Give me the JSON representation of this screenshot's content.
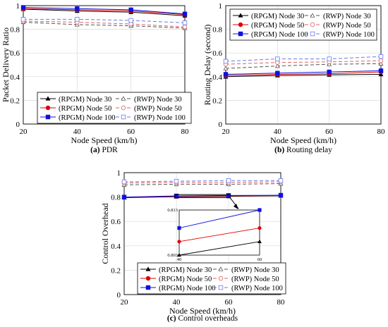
{
  "figure": {
    "captions": [
      {
        "label": "(a)",
        "text": "PDR"
      },
      {
        "label": "(b)",
        "text": "Routing delay"
      },
      {
        "label": "(c)",
        "text": "Control overheads"
      }
    ]
  },
  "chart_data": [
    {
      "type": "line",
      "id": "a",
      "xlabel": "Node Speed (km/h)",
      "ylabel": "Packet Delivery Ratio",
      "xlim": [
        20,
        80
      ],
      "ylim": [
        0,
        1
      ],
      "xticks": [
        20,
        40,
        60,
        80
      ],
      "yticks": [
        0,
        0.2,
        0.4,
        0.6,
        0.8,
        1
      ],
      "grid": true,
      "legend": "bottom",
      "x": [
        20,
        40,
        60,
        80
      ],
      "series": [
        {
          "name": "(RPGM) Node 30",
          "values": [
            0.97,
            0.955,
            0.945,
            0.915
          ]
        },
        {
          "name": "(RWP) Node 30",
          "values": [
            0.86,
            0.84,
            0.83,
            0.81
          ]
        },
        {
          "name": "(RPGM) Node 50",
          "values": [
            0.975,
            0.965,
            0.955,
            0.925
          ]
        },
        {
          "name": "(RWP) Node 50",
          "values": [
            0.87,
            0.86,
            0.845,
            0.82
          ]
        },
        {
          "name": "(RPGM) Node 100",
          "values": [
            0.985,
            0.975,
            0.965,
            0.93
          ]
        },
        {
          "name": "(RWP) Node 100",
          "values": [
            0.885,
            0.885,
            0.875,
            0.855
          ]
        }
      ]
    },
    {
      "type": "line",
      "id": "b",
      "xlabel": "Node Speed (km/h)",
      "ylabel": "Routing Delay (second)",
      "xlim": [
        20,
        80
      ],
      "ylim": [
        0,
        1
      ],
      "xticks": [
        20,
        40,
        60,
        80
      ],
      "yticks": [
        0,
        0.2,
        0.4,
        0.6,
        0.8,
        1
      ],
      "grid": true,
      "legend": "top-right",
      "x": [
        20,
        40,
        60,
        80
      ],
      "series": [
        {
          "name": "(RPGM) Node 30",
          "values": [
            0.4,
            0.41,
            0.415,
            0.42
          ]
        },
        {
          "name": "(RWP) Node 30",
          "values": [
            0.47,
            0.49,
            0.505,
            0.51
          ]
        },
        {
          "name": "(RPGM) Node 50",
          "values": [
            0.41,
            0.42,
            0.425,
            0.44
          ]
        },
        {
          "name": "(RWP) Node 50",
          "values": [
            0.505,
            0.52,
            0.525,
            0.535
          ]
        },
        {
          "name": "(RPGM) Node 100",
          "values": [
            0.42,
            0.43,
            0.44,
            0.45
          ]
        },
        {
          "name": "(RWP) Node 100",
          "values": [
            0.53,
            0.55,
            0.55,
            0.57
          ]
        }
      ]
    },
    {
      "type": "line",
      "id": "c",
      "xlabel": "Node Speed (km/h)",
      "ylabel": "Control Overhead",
      "xlim": [
        20,
        80
      ],
      "ylim": [
        0,
        1
      ],
      "xticks": [
        20,
        40,
        60,
        80
      ],
      "yticks": [
        0,
        0.2,
        0.4,
        0.6,
        0.8,
        1
      ],
      "grid": true,
      "legend": "bottom",
      "x": [
        20,
        40,
        60,
        80
      ],
      "series": [
        {
          "name": "(RPGM) Node 30",
          "values": [
            0.795,
            0.803,
            0.806,
            0.81
          ]
        },
        {
          "name": "(RWP) Node 30",
          "values": [
            0.9,
            0.905,
            0.905,
            0.91
          ]
        },
        {
          "name": "(RPGM) Node 50",
          "values": [
            0.798,
            0.806,
            0.809,
            0.812
          ]
        },
        {
          "name": "(RWP) Node 50",
          "values": [
            0.915,
            0.92,
            0.92,
            0.925
          ]
        },
        {
          "name": "(RPGM) Node 100",
          "values": [
            0.8,
            0.809,
            0.813,
            0.815
          ]
        },
        {
          "name": "(RWP) Node 100",
          "values": [
            0.925,
            0.93,
            0.935,
            0.935
          ]
        }
      ],
      "inset": {
        "xticks": [
          40,
          60
        ],
        "yticks": [
          0.803,
          0.813
        ],
        "xlim": [
          40,
          60
        ],
        "ylim": [
          0.803,
          0.813
        ],
        "series": [
          {
            "name": "(RPGM) Node 30",
            "values": [
              0.803,
              0.806
            ]
          },
          {
            "name": "(RPGM) Node 50",
            "values": [
              0.806,
              0.809
            ]
          },
          {
            "name": "(RPGM) Node 100",
            "values": [
              0.809,
              0.813
            ]
          }
        ]
      }
    }
  ],
  "styles": {
    "series_colors": [
      "#000000",
      "#555555",
      "#e00000",
      "#e06060",
      "#1010e0",
      "#6a7ae8"
    ],
    "grid_color": "#d9d9d9"
  }
}
